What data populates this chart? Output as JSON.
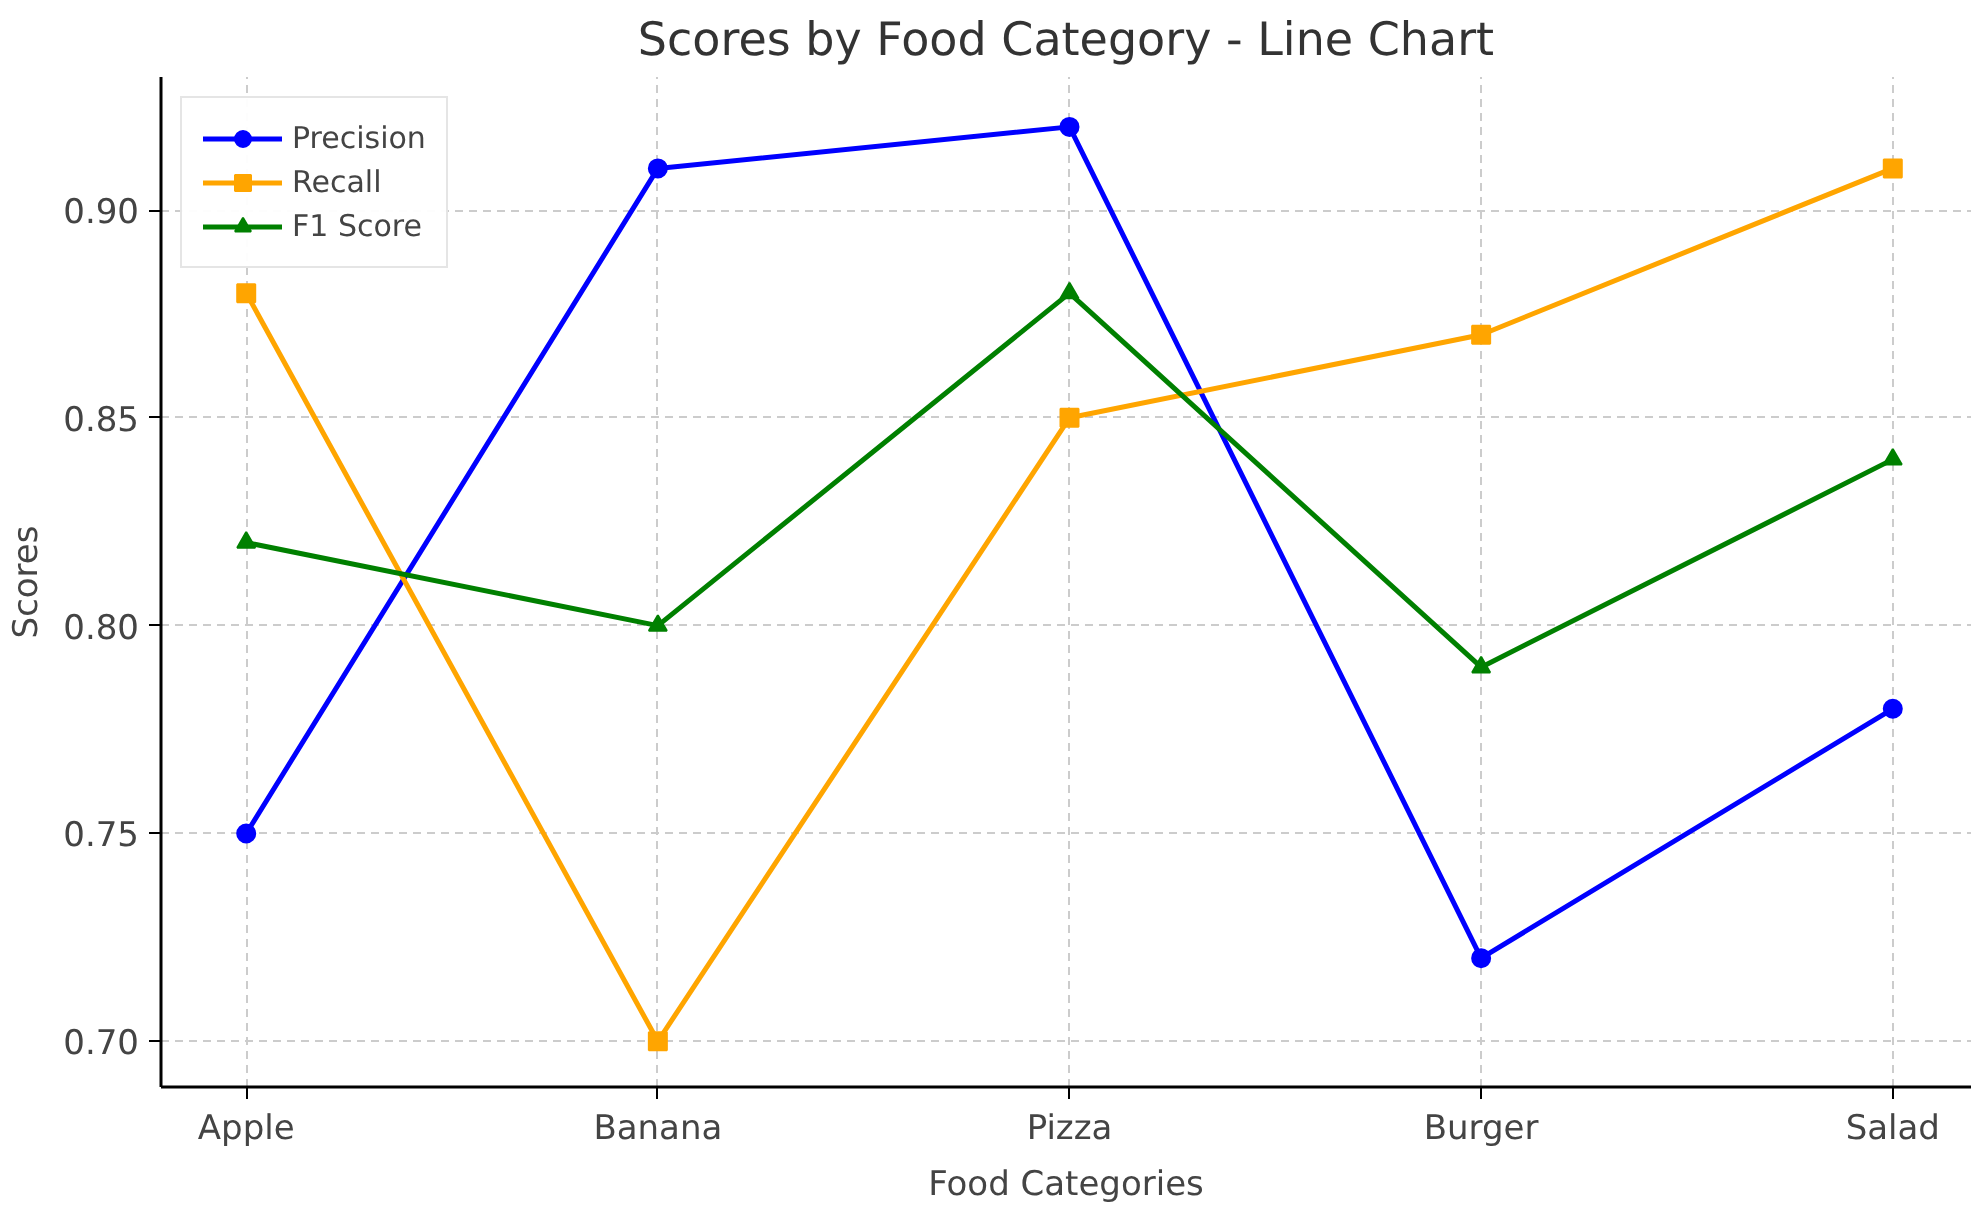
{
  "chart_data": {
    "type": "line",
    "title": "Scores by Food Category - Line Chart",
    "xlabel": "Food Categories",
    "ylabel": "Scores",
    "categories": [
      "Apple",
      "Banana",
      "Pizza",
      "Burger",
      "Salad"
    ],
    "series": [
      {
        "name": "Precision",
        "color": "#0000ff",
        "marker": "circle",
        "values": [
          0.75,
          0.91,
          0.92,
          0.72,
          0.78
        ]
      },
      {
        "name": "Recall",
        "color": "#ffa500",
        "marker": "square",
        "values": [
          0.88,
          0.7,
          0.85,
          0.87,
          0.91
        ]
      },
      {
        "name": "F1 Score",
        "color": "#008000",
        "marker": "triangle",
        "values": [
          0.82,
          0.8,
          0.88,
          0.79,
          0.84
        ]
      }
    ],
    "ylim": [
      0.689,
      0.932
    ],
    "yticks": [
      {
        "value": 0.7,
        "label": "0.70"
      },
      {
        "value": 0.75,
        "label": "0.75"
      },
      {
        "value": 0.8,
        "label": "0.80"
      },
      {
        "value": 0.85,
        "label": "0.85"
      },
      {
        "value": 0.9,
        "label": "0.90"
      }
    ],
    "grid": true,
    "legend": "top left",
    "line_style": "solid"
  }
}
